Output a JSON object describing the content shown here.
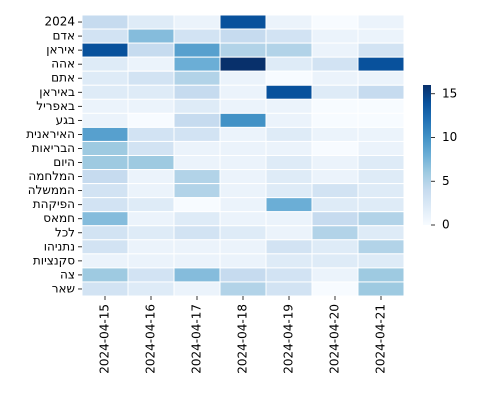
{
  "chart_data": {
    "type": "heatmap",
    "title": "",
    "xlabel": "",
    "ylabel": "",
    "colormap": "Blues",
    "color_range": [
      0,
      16
    ],
    "colorbar_ticks": [
      "0",
      "5",
      "10",
      "15"
    ],
    "x": [
      "2024-04-15",
      "2024-04-16",
      "2024-04-17",
      "2024-04-18",
      "2024-04-19",
      "2024-04-20",
      "2024-04-21"
    ],
    "y": [
      "2024",
      "אדם",
      "איראן",
      "אהה",
      "אתם",
      "באיראן",
      "באפריל",
      "בגע",
      "האיראנית",
      "הבריאות",
      "היום",
      "המלחמה",
      "הממשלה",
      "הפיקהת",
      "חמאס",
      "לכל",
      "נתניהו",
      "סקנציות",
      "צה",
      "שאר"
    ],
    "values": [
      [
        4,
        2,
        1,
        14,
        1,
        0,
        1
      ],
      [
        3,
        7,
        3,
        4,
        3,
        1,
        1
      ],
      [
        14,
        4,
        9,
        5,
        5,
        1,
        3
      ],
      [
        2,
        1,
        8,
        16,
        2,
        3,
        14
      ],
      [
        2,
        3,
        5,
        1,
        0,
        1,
        1
      ],
      [
        2,
        2,
        4,
        1,
        14,
        2,
        4
      ],
      [
        1,
        1,
        2,
        1,
        1,
        0,
        0
      ],
      [
        1,
        0,
        4,
        10,
        1,
        0,
        0
      ],
      [
        9,
        3,
        3,
        1,
        2,
        1,
        1
      ],
      [
        6,
        3,
        1,
        1,
        1,
        0,
        1
      ],
      [
        6,
        6,
        1,
        1,
        2,
        1,
        2
      ],
      [
        4,
        1,
        5,
        1,
        2,
        1,
        2
      ],
      [
        3,
        1,
        5,
        1,
        2,
        3,
        2
      ],
      [
        3,
        2,
        0,
        1,
        8,
        2,
        2
      ],
      [
        7,
        1,
        2,
        1,
        1,
        4,
        5
      ],
      [
        3,
        2,
        3,
        2,
        1,
        5,
        2
      ],
      [
        3,
        1,
        1,
        1,
        3,
        2,
        5
      ],
      [
        1,
        1,
        1,
        1,
        2,
        2,
        2
      ],
      [
        6,
        3,
        7,
        4,
        3,
        1,
        6
      ],
      [
        3,
        2,
        1,
        5,
        3,
        0,
        6
      ]
    ]
  }
}
